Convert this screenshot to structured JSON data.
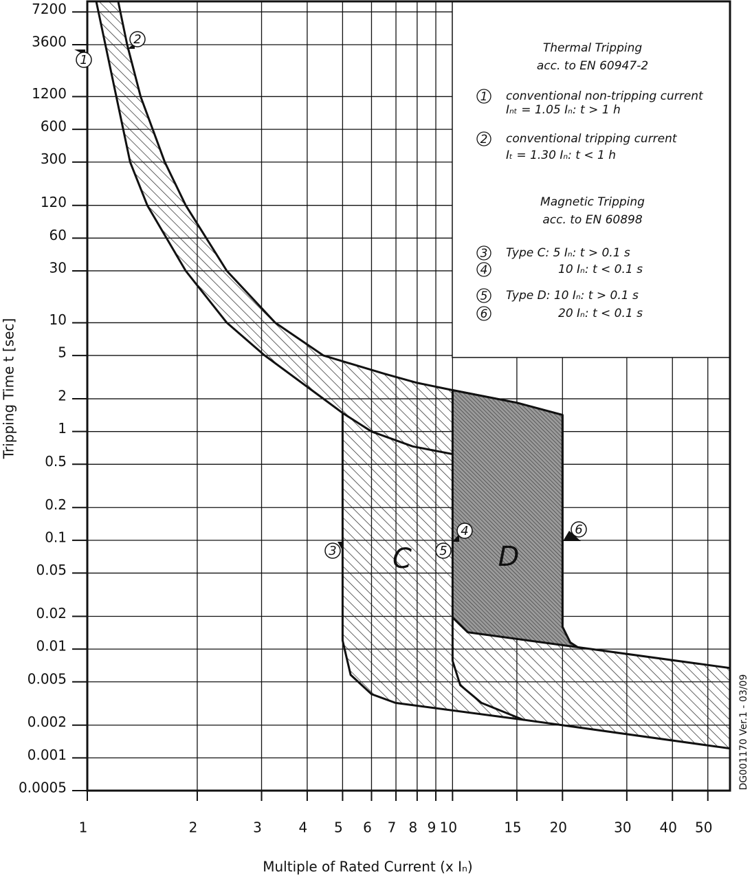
{
  "chart_data": {
    "type": "area",
    "xlabel": "Multiple of Rated Current (x Iₙ)",
    "ylabel": "Tripping Time t [sec]",
    "side_text": "DG001170 Ver.1 - 03/09",
    "xscale": "log",
    "yscale": "log",
    "grid": true,
    "xlim": [
      1,
      57.5
    ],
    "ylim": [
      0.0005,
      9000
    ],
    "xticks": [
      1,
      2,
      3,
      4,
      5,
      6,
      7,
      8,
      9,
      10,
      15,
      20,
      30,
      40,
      50
    ],
    "yticks": [
      7200,
      3600,
      1200,
      600,
      300,
      120,
      60,
      30,
      10,
      5,
      2,
      1,
      0.5,
      0.2,
      0.1,
      0.05,
      0.02,
      0.01,
      0.005,
      0.002,
      0.001,
      0.0005
    ],
    "series": [
      {
        "color": "#111111",
        "fill": "hatch",
        "closed": true,
        "x": [
          1.215,
          1.286,
          1.4,
          1.63,
          1.86,
          2.41,
          3.27,
          4.43,
          6.5,
          8,
          10,
          15,
          20,
          20,
          21,
          22,
          57.5,
          57.5,
          15.6,
          6.98,
          6.0,
          5.26,
          5.0,
          5.0,
          4.43,
          3.06,
          2.41,
          1.86,
          1.46,
          1.31,
          1.058
        ],
        "values": [
          9000,
          3600,
          1200,
          300,
          120,
          30,
          10,
          5,
          3.4,
          2.8,
          2.4,
          1.84,
          1.42,
          0.016,
          0.0115,
          0.0104,
          0.0067,
          0.00122,
          0.00224,
          0.0032,
          0.00386,
          0.0058,
          0.012,
          1.48,
          2,
          5,
          10,
          30,
          120,
          300,
          9000
        ]
      },
      {
        "color": "#111111",
        "fill": "dense-hatch",
        "closed": true,
        "x": [
          10,
          15,
          20,
          20,
          21,
          22,
          11,
          10
        ],
        "values": [
          2.4,
          1.84,
          1.42,
          0.016,
          0.0115,
          0.0104,
          0.0143,
          0.0195
        ]
      },
      {
        "color": "#111111",
        "fill": "none",
        "closed": false,
        "x": [
          5,
          6,
          7.78,
          10
        ],
        "values": [
          1.48,
          1.0,
          0.73,
          0.62
        ]
      },
      {
        "color": "#111111",
        "fill": "none",
        "closed": false,
        "x": [
          10,
          10,
          10.5,
          12,
          15.6
        ],
        "values": [
          0.0195,
          0.0078,
          0.00466,
          0.0032,
          0.00224
        ]
      }
    ],
    "annotations": [
      "1",
      "2",
      "3",
      "4",
      "5",
      "6",
      "C",
      "D"
    ],
    "notes": {
      "thermal": [
        "Thermal Tripping",
        "acc. to EN 60947-2"
      ],
      "magnetic": [
        "Magnetic Tripping",
        "acc. to EN 60898"
      ],
      "items": [
        {
          "marker": "1",
          "lines": [
            "conventional non-tripping current",
            "Iₙₜ = 1.05 Iₙ: t > 1 h"
          ]
        },
        {
          "marker": "2",
          "lines": [
            "conventional tripping current",
            "Iₜ = 1.30 Iₙ: t < 1 h"
          ]
        },
        {
          "marker": "3",
          "lines": [
            "Type C:  5 Iₙ: t > 0.1 s"
          ]
        },
        {
          "marker": "4",
          "lines": [
            "10 Iₙ: t < 0.1 s"
          ]
        },
        {
          "marker": "5",
          "lines": [
            "Type D: 10 Iₙ: t > 0.1 s"
          ]
        },
        {
          "marker": "6",
          "lines": [
            "20 Iₙ: t < 0.1 s"
          ]
        }
      ]
    }
  }
}
